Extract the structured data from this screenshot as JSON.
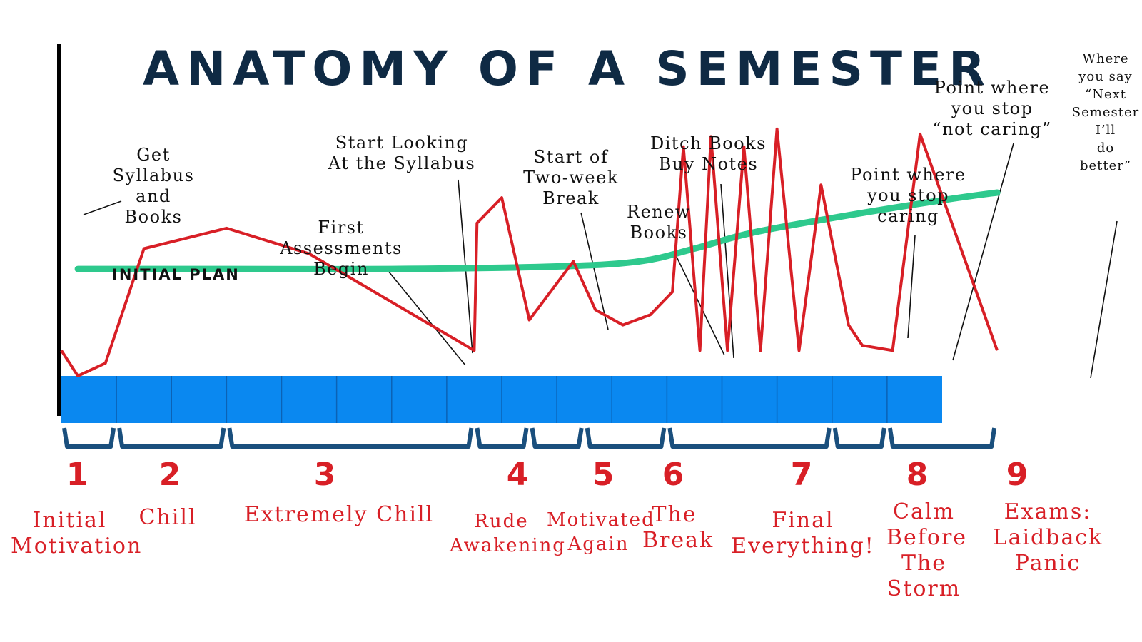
{
  "chart_data": {
    "type": "line",
    "title": "ANATOMY OF A SEMESTER",
    "xlabel": "",
    "ylabel": "",
    "xlim": [
      0,
      17
    ],
    "ylim": [
      0,
      100
    ],
    "grid": false,
    "semester_weeks": 16,
    "series": [
      {
        "name": "INITIAL PLAN",
        "color": "#2ec98d",
        "x": [
          0.3,
          3,
          6,
          9,
          10.5,
          11.5,
          12.5,
          14,
          16,
          17
        ],
        "y": [
          42,
          42,
          42,
          43,
          45,
          50,
          56,
          62,
          69,
          72
        ]
      },
      {
        "name": "",
        "color": "#d81f26",
        "x": [
          0,
          0.3,
          0.8,
          1.5,
          3,
          4.5,
          7.5,
          7.55,
          8,
          8.5,
          9.3,
          9.7,
          10.2,
          10.7,
          11.1,
          11.3,
          11.6,
          11.8,
          12.1,
          12.4,
          12.7,
          13.0,
          13.4,
          13.8,
          14.3,
          14.55,
          15.1,
          15.6,
          17
        ],
        "y": [
          10,
          0,
          5,
          50,
          58,
          48,
          10,
          60,
          70,
          22,
          45,
          26,
          20,
          24,
          33,
          90,
          10,
          94,
          10,
          90,
          10,
          97,
          10,
          75,
          20,
          12,
          10,
          95,
          10
        ]
      }
    ],
    "annotations": [
      {
        "text": "Get\nSyllabus\nand\nBooks"
      },
      {
        "text": "First\nAssessments\nBegin"
      },
      {
        "text": "Start Looking\nAt the Syllabus"
      },
      {
        "text": "Start of\nTwo-week\nBreak"
      },
      {
        "text": "Renew\nBooks"
      },
      {
        "text": "Ditch Books\nBuy Notes"
      },
      {
        "text": "Point where\nyou stop\ncaring"
      },
      {
        "text": "Point where\nyou stop\n“not caring”"
      },
      {
        "text": "Where\nyou say\n“Next\nSemester\nI’ll\ndo\nbetter”"
      }
    ],
    "phases": [
      {
        "num": "1",
        "label": "Initial\nMotivation",
        "weeks": [
          0,
          1
        ]
      },
      {
        "num": "2",
        "label": "Chill",
        "weeks": [
          1,
          3
        ]
      },
      {
        "num": "3",
        "label": "Extremely Chill",
        "weeks": [
          3,
          7.5
        ]
      },
      {
        "num": "4",
        "label": "Rude\nAwakening",
        "weeks": [
          7.5,
          8.5
        ]
      },
      {
        "num": "5",
        "label": "Motivated\nAgain",
        "weeks": [
          8.5,
          9.5
        ]
      },
      {
        "num": "6",
        "label": "The\nBreak",
        "weeks": [
          9.5,
          11
        ]
      },
      {
        "num": "7",
        "label": "Final\nEverything!",
        "weeks": [
          11,
          14
        ]
      },
      {
        "num": "8",
        "label": "Calm\nBefore\nThe\nStorm",
        "weeks": [
          14,
          15
        ]
      },
      {
        "num": "9",
        "label": "Exams:\nLaidback\nPanic",
        "weeks": [
          15,
          17
        ]
      }
    ]
  },
  "colors": {
    "title": "#0f2a44",
    "timeline_bar": "#0a88f0",
    "bracket": "#1a4f7d",
    "student_line": "#d81f26",
    "plan_line": "#2ec98d",
    "phase_text": "#d81f26"
  }
}
